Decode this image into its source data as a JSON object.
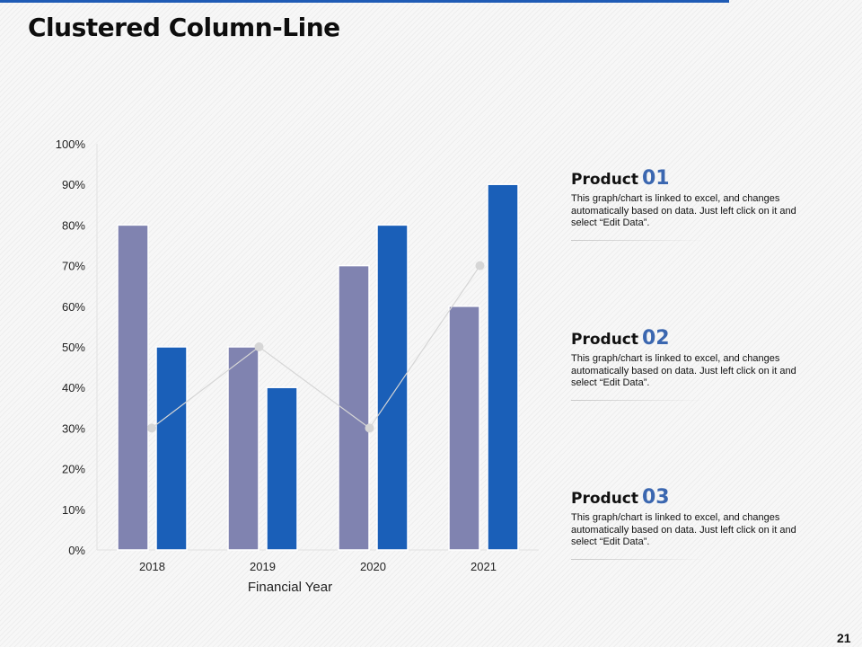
{
  "page": {
    "title": "Clustered Column-Line",
    "page_number": "21"
  },
  "colors": {
    "series_1": "#8083b0",
    "series_2": "#1a5fb8",
    "line": "#d6d6d6",
    "accent": "#3b67b0"
  },
  "chart_data": {
    "type": "bar",
    "categories": [
      "2018",
      "2019",
      "2020",
      "2021"
    ],
    "series": [
      {
        "type": "bar",
        "values": [
          80,
          50,
          70,
          60
        ]
      },
      {
        "type": "bar",
        "values": [
          50,
          40,
          80,
          90
        ]
      },
      {
        "type": "line",
        "values": [
          30,
          50,
          30,
          70
        ]
      }
    ],
    "title": "",
    "xlabel": "Financial Year",
    "ylabel": "",
    "ylim": [
      0,
      100
    ],
    "yticks": [
      "0%",
      "10%",
      "20%",
      "30%",
      "40%",
      "50%",
      "60%",
      "70%",
      "80%",
      "90%",
      "100%"
    ],
    "grid": false
  },
  "products": [
    {
      "label": "Product",
      "number": "01",
      "desc": "This graph/chart is linked to excel, and changes automatically based on data. Just left click on it and select “Edit Data”."
    },
    {
      "label": "Product",
      "number": "02",
      "desc": "This graph/chart is linked to excel, and changes automatically based on data. Just left click on it and select “Edit Data”."
    },
    {
      "label": "Product",
      "number": "03",
      "desc": "This graph/chart is linked to excel, and changes automatically based on data. Just left click on it and select “Edit Data”."
    }
  ]
}
